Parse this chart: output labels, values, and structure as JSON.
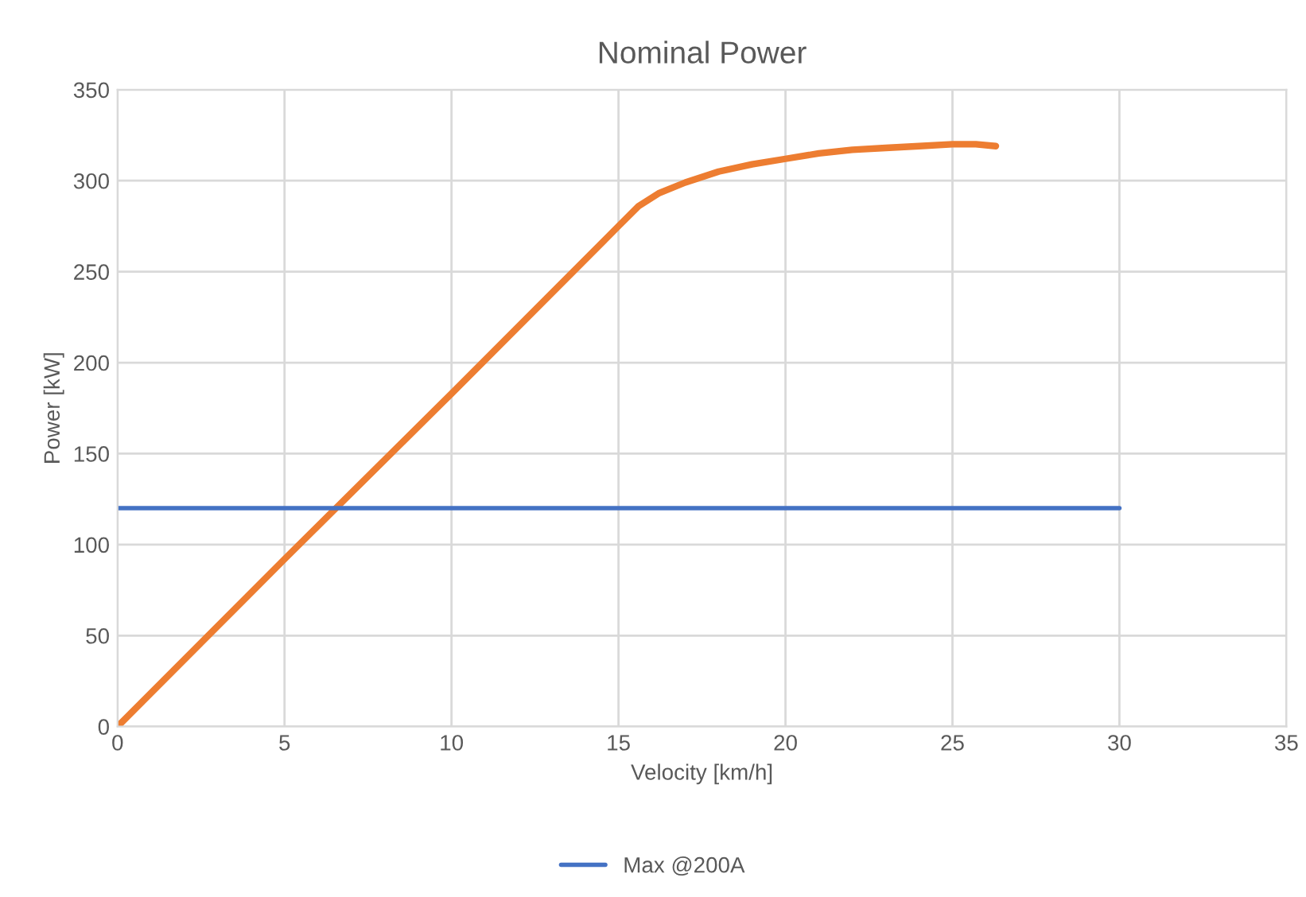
{
  "chart_data": {
    "type": "line",
    "title": "Nominal Power",
    "xlabel": "Velocity [km/h]",
    "ylabel": "Power [kW]",
    "xlim": [
      0,
      35
    ],
    "xticks": [
      0,
      5,
      10,
      15,
      20,
      25,
      30,
      35
    ],
    "ylim": [
      0,
      350
    ],
    "yticks": [
      0,
      50,
      100,
      150,
      200,
      250,
      300,
      350
    ],
    "grid": true,
    "legend": "bottom",
    "marker": "none",
    "line_style": "solid",
    "series": [
      {
        "color": "#ed7d31",
        "x": [
          0,
          5,
          10,
          15,
          15.6,
          16.2,
          17,
          18,
          19,
          20,
          21,
          22,
          23,
          24,
          25,
          25.7,
          26.3
        ],
        "values": [
          0,
          92,
          183,
          275,
          286,
          293,
          299,
          305,
          309,
          312,
          315,
          317,
          318,
          319,
          320,
          320,
          319
        ]
      },
      {
        "name": "Max @200A",
        "color": "#4472c4",
        "x": [
          0,
          30
        ],
        "values": [
          120,
          120
        ]
      }
    ]
  }
}
